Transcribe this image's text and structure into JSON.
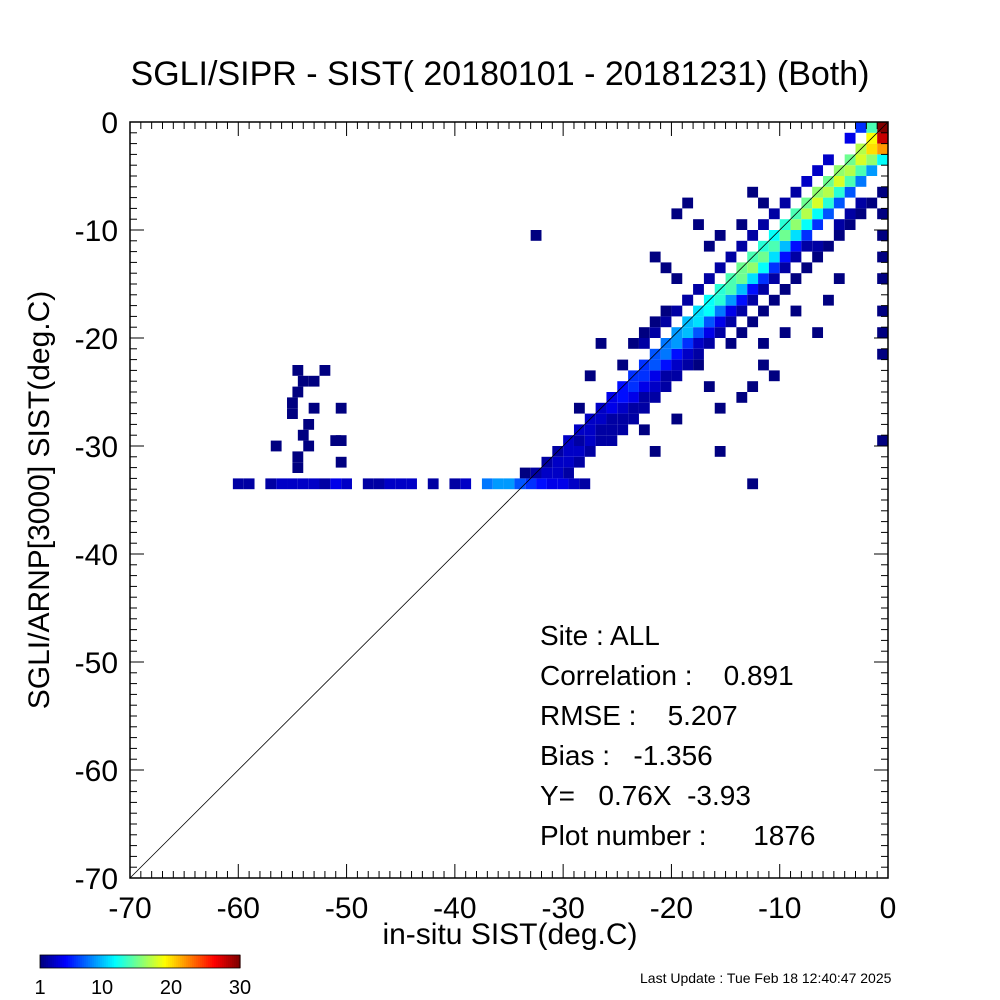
{
  "chart_data": {
    "type": "heatmap",
    "title": "SGLI/SIPR - SIST( 20180101 - 20181231) (Both)",
    "xlabel": "in-situ SIST(deg.C)",
    "ylabel": "SGLI/ARNP[3000]     SIST(deg.C)",
    "xlim": [
      -70,
      0
    ],
    "ylim": [
      -70,
      0
    ],
    "xticks": [
      -70,
      -60,
      -50,
      -40,
      -30,
      -20,
      -10,
      0
    ],
    "yticks": [
      -70,
      -60,
      -50,
      -40,
      -30,
      -20,
      -10,
      0
    ],
    "xtick_labels": [
      "-70",
      "-60",
      "-50",
      "-40",
      "-30",
      "-20",
      "-10",
      "0"
    ],
    "ytick_labels": [
      "-70",
      "-60",
      "-50",
      "-40",
      "-30",
      "-20",
      "-10",
      "0"
    ],
    "one_to_one_line": true,
    "bin_size": 1,
    "colorbar": {
      "min": 1,
      "max": 30,
      "ticks": [
        1,
        10,
        20,
        30
      ],
      "tick_labels": [
        "1",
        "10",
        "20",
        "30"
      ],
      "colormap": "jet"
    },
    "cells": [
      [
        -60,
        -33.5,
        2
      ],
      [
        -59,
        -33.5,
        2
      ],
      [
        -57,
        -33.5,
        2
      ],
      [
        -56,
        -33.5,
        3
      ],
      [
        -55,
        -33.5,
        3
      ],
      [
        -54,
        -33.5,
        3
      ],
      [
        -53,
        -33.5,
        3
      ],
      [
        -52,
        -33.5,
        2
      ],
      [
        -51,
        -33.5,
        4
      ],
      [
        -50,
        -33.5,
        3
      ],
      [
        -48,
        -33.5,
        2
      ],
      [
        -47,
        -33.5,
        2
      ],
      [
        -46,
        -33.5,
        3
      ],
      [
        -45,
        -33.5,
        3
      ],
      [
        -44,
        -33.5,
        3
      ],
      [
        -42,
        -33.5,
        2
      ],
      [
        -40,
        -33.5,
        2
      ],
      [
        -39,
        -33.5,
        3
      ],
      [
        -37,
        -33.5,
        8
      ],
      [
        -36,
        -33.5,
        9
      ],
      [
        -35,
        -33.5,
        9
      ],
      [
        -34,
        -33.5,
        7
      ],
      [
        -33,
        -33.5,
        6
      ],
      [
        -32,
        -33.5,
        5
      ],
      [
        -31,
        -33.5,
        4
      ],
      [
        -30,
        -33.5,
        4
      ],
      [
        -29,
        -33.5,
        3
      ],
      [
        -28,
        -33.5,
        2
      ],
      [
        -54.5,
        -23,
        1
      ],
      [
        -54,
        -24,
        1
      ],
      [
        -54.5,
        -25,
        1
      ],
      [
        -55,
        -26,
        1
      ],
      [
        -55,
        -27,
        1
      ],
      [
        -56.5,
        -30,
        1
      ],
      [
        -54.5,
        -31,
        1
      ],
      [
        -54.5,
        -32,
        1
      ],
      [
        -53.5,
        -30,
        1
      ],
      [
        -54,
        -29,
        1
      ],
      [
        -53.5,
        -28,
        1
      ],
      [
        -53,
        -24,
        1
      ],
      [
        -52,
        -23,
        1
      ],
      [
        -53,
        -26.5,
        1
      ],
      [
        -50.5,
        -26.5,
        1
      ],
      [
        -50.5,
        -29.5,
        1
      ],
      [
        -51,
        -29.5,
        1
      ],
      [
        -50.5,
        -31.5,
        1
      ],
      [
        -33.5,
        -32.5,
        1
      ],
      [
        -32.5,
        -32.5,
        2
      ],
      [
        -31.5,
        -32.5,
        3
      ],
      [
        -30.5,
        -32.5,
        3
      ],
      [
        -29.5,
        -32.5,
        2
      ],
      [
        -31.5,
        -31.5,
        2
      ],
      [
        -30.5,
        -31.5,
        3
      ],
      [
        -29.5,
        -31.5,
        3
      ],
      [
        -28.5,
        -31.5,
        2
      ],
      [
        -30.5,
        -30.5,
        2
      ],
      [
        -29.5,
        -30.5,
        3
      ],
      [
        -28.5,
        -30.5,
        3
      ],
      [
        -27.5,
        -30.5,
        2
      ],
      [
        -29.5,
        -29.5,
        3
      ],
      [
        -28.5,
        -29.5,
        2
      ],
      [
        -27.5,
        -29.5,
        3
      ],
      [
        -26.5,
        -29.5,
        2
      ],
      [
        -28.5,
        -28.5,
        3
      ],
      [
        -27.5,
        -28.5,
        3
      ],
      [
        -26.5,
        -28.5,
        2
      ],
      [
        -25.5,
        -28.5,
        2
      ],
      [
        -27.5,
        -27.5,
        3
      ],
      [
        -26.5,
        -27.5,
        3
      ],
      [
        -25.5,
        -27.5,
        2
      ],
      [
        -24.5,
        -27.5,
        2
      ],
      [
        -26.5,
        -26.5,
        3
      ],
      [
        -25.5,
        -26.5,
        4
      ],
      [
        -24.5,
        -26.5,
        3
      ],
      [
        -23.5,
        -26.5,
        2
      ],
      [
        -25.5,
        -25.5,
        4
      ],
      [
        -24.5,
        -25.5,
        5
      ],
      [
        -23.5,
        -25.5,
        4
      ],
      [
        -22.5,
        -25.5,
        2
      ],
      [
        -24.5,
        -24.5,
        5
      ],
      [
        -23.5,
        -24.5,
        6
      ],
      [
        -22.5,
        -24.5,
        4
      ],
      [
        -21.5,
        -24.5,
        3
      ],
      [
        -23.5,
        -23.5,
        6
      ],
      [
        -22.5,
        -23.5,
        6
      ],
      [
        -21.5,
        -23.5,
        4
      ],
      [
        -20.5,
        -23.5,
        2
      ],
      [
        -22.5,
        -22.5,
        6
      ],
      [
        -21.5,
        -22.5,
        7
      ],
      [
        -20.5,
        -22.5,
        5
      ],
      [
        -19.5,
        -22.5,
        3
      ],
      [
        -21.5,
        -21.5,
        7
      ],
      [
        -20.5,
        -21.5,
        8
      ],
      [
        -19.5,
        -21.5,
        5
      ],
      [
        -18.5,
        -21.5,
        3
      ],
      [
        -20.5,
        -20.5,
        8
      ],
      [
        -19.5,
        -20.5,
        9
      ],
      [
        -18.5,
        -20.5,
        6
      ],
      [
        -17.5,
        -20.5,
        3
      ],
      [
        -19.5,
        -19.5,
        9
      ],
      [
        -18.5,
        -19.5,
        10
      ],
      [
        -17.5,
        -19.5,
        7
      ],
      [
        -16.5,
        -19.5,
        4
      ],
      [
        -18.5,
        -18.5,
        10
      ],
      [
        -17.5,
        -18.5,
        11
      ],
      [
        -16.5,
        -18.5,
        7
      ],
      [
        -15.5,
        -18.5,
        4
      ],
      [
        -17.5,
        -17.5,
        11
      ],
      [
        -16.5,
        -17.5,
        12
      ],
      [
        -15.5,
        -17.5,
        8
      ],
      [
        -14.5,
        -17.5,
        4
      ],
      [
        -16.5,
        -16.5,
        12
      ],
      [
        -15.5,
        -16.5,
        13
      ],
      [
        -14.5,
        -16.5,
        9
      ],
      [
        -13.5,
        -16.5,
        5
      ],
      [
        -15.5,
        -15.5,
        13
      ],
      [
        -14.5,
        -15.5,
        14
      ],
      [
        -13.5,
        -15.5,
        10
      ],
      [
        -12.5,
        -15.5,
        5
      ],
      [
        -14.5,
        -14.5,
        14
      ],
      [
        -13.5,
        -14.5,
        15
      ],
      [
        -12.5,
        -14.5,
        11
      ],
      [
        -11.5,
        -14.5,
        6
      ],
      [
        -13.5,
        -13.5,
        15
      ],
      [
        -12.5,
        -13.5,
        16
      ],
      [
        -11.5,
        -13.5,
        12
      ],
      [
        -10.5,
        -13.5,
        6
      ],
      [
        -12.5,
        -12.5,
        14
      ],
      [
        -11.5,
        -12.5,
        15
      ],
      [
        -10.5,
        -12.5,
        11
      ],
      [
        -9.5,
        -12.5,
        5
      ],
      [
        -11.5,
        -11.5,
        13
      ],
      [
        -10.5,
        -11.5,
        14
      ],
      [
        -9.5,
        -11.5,
        10
      ],
      [
        -8.5,
        -11.5,
        5
      ],
      [
        -10.5,
        -10.5,
        12
      ],
      [
        -9.5,
        -10.5,
        15
      ],
      [
        -8.5,
        -10.5,
        11
      ],
      [
        -7.5,
        -10.5,
        6
      ],
      [
        -9.5,
        -9.5,
        13
      ],
      [
        -8.5,
        -9.5,
        16
      ],
      [
        -7.5,
        -9.5,
        12
      ],
      [
        -6.5,
        -9.5,
        6
      ],
      [
        -8.5,
        -8.5,
        14
      ],
      [
        -7.5,
        -8.5,
        17
      ],
      [
        -6.5,
        -8.5,
        12
      ],
      [
        -5.5,
        -8.5,
        7
      ],
      [
        -7.5,
        -7.5,
        15
      ],
      [
        -6.5,
        -7.5,
        18
      ],
      [
        -5.5,
        -7.5,
        13
      ],
      [
        -4.5,
        -7.5,
        7
      ],
      [
        -6.5,
        -6.5,
        16
      ],
      [
        -5.5,
        -6.5,
        17
      ],
      [
        -4.5,
        -6.5,
        13
      ],
      [
        -3.5,
        -6.5,
        7
      ],
      [
        -5.5,
        -5.5,
        15
      ],
      [
        -4.5,
        -5.5,
        18
      ],
      [
        -3.5,
        -5.5,
        14
      ],
      [
        -2.5,
        -5.5,
        8
      ],
      [
        -4.5,
        -4.5,
        16
      ],
      [
        -3.5,
        -4.5,
        17
      ],
      [
        -2.5,
        -4.5,
        14
      ],
      [
        -1.5,
        -4.5,
        9
      ],
      [
        -3.5,
        -3.5,
        15
      ],
      [
        -2.5,
        -3.5,
        18
      ],
      [
        -1.5,
        -3.5,
        16
      ],
      [
        -0.5,
        -3.5,
        12
      ],
      [
        -2.5,
        -2.5,
        17
      ],
      [
        -1.5,
        -2.5,
        20
      ],
      [
        -0.5,
        -2.5,
        22
      ],
      [
        -1.5,
        -1.5,
        19
      ],
      [
        -0.5,
        -1.5,
        28
      ],
      [
        -0.5,
        -0.5,
        30
      ],
      [
        -1.5,
        -0.5,
        14
      ],
      [
        -32.5,
        -10.5,
        1
      ],
      [
        -19.5,
        -8.5,
        1
      ],
      [
        -18.5,
        -7.5,
        1
      ],
      [
        -17.5,
        -9.5,
        1
      ],
      [
        -21.5,
        -12.5,
        1
      ],
      [
        -20.5,
        -13.5,
        1
      ],
      [
        -19.5,
        -14.5,
        1
      ],
      [
        -18.5,
        -16.5,
        1
      ],
      [
        -16.5,
        -11.5,
        1
      ],
      [
        -15.5,
        -10.5,
        1
      ],
      [
        -13.5,
        -9.5,
        1
      ],
      [
        -12.5,
        -6.5,
        1
      ],
      [
        -11.5,
        -7.5,
        1
      ],
      [
        -22.5,
        -19.5,
        1
      ],
      [
        -21.5,
        -18.5,
        1
      ],
      [
        -20.5,
        -17.5,
        1
      ],
      [
        -23.5,
        -20.5,
        1
      ],
      [
        -17.5,
        -22.5,
        1
      ],
      [
        -16.5,
        -24.5,
        1
      ],
      [
        -15.5,
        -26.5,
        1
      ],
      [
        -13.5,
        -25.5,
        1
      ],
      [
        -12.5,
        -24.5,
        1
      ],
      [
        -11.5,
        -22.5,
        1
      ],
      [
        -14.5,
        -20.5,
        1
      ],
      [
        -13.5,
        -19.5,
        1
      ],
      [
        -12.5,
        -18.5,
        1
      ],
      [
        -11.5,
        -17.5,
        1
      ],
      [
        -10.5,
        -16.5,
        1
      ],
      [
        -9.5,
        -15.5,
        1
      ],
      [
        -8.5,
        -14.5,
        1
      ],
      [
        -7.5,
        -13.5,
        1
      ],
      [
        -6.5,
        -12.5,
        1
      ],
      [
        -5.5,
        -11.5,
        1
      ],
      [
        -4.5,
        -10.5,
        1
      ],
      [
        -3.5,
        -9.5,
        1
      ],
      [
        -2.5,
        -8.5,
        1
      ],
      [
        -1.5,
        -7.5,
        1
      ],
      [
        -0.5,
        -6.5,
        1
      ],
      [
        -0.5,
        -8.5,
        1
      ],
      [
        -0.5,
        -10.5,
        1
      ],
      [
        -0.5,
        -12.5,
        1
      ],
      [
        -0.5,
        -14.5,
        1
      ],
      [
        -0.5,
        -17.5,
        1
      ],
      [
        -0.5,
        -19.5,
        1
      ],
      [
        -0.5,
        -21.5,
        1
      ],
      [
        -0.5,
        -29.5,
        1
      ],
      [
        -4.5,
        -14.5,
        1
      ],
      [
        -5.5,
        -16.5,
        1
      ],
      [
        -6.5,
        -19.5,
        1
      ],
      [
        -8.5,
        -17.5,
        1
      ],
      [
        -9.5,
        -19.5,
        1
      ],
      [
        -11.5,
        -20.5,
        1
      ],
      [
        -10.5,
        -23.5,
        1
      ],
      [
        -12.5,
        -33.5,
        1
      ],
      [
        -15.5,
        -30.5,
        1
      ],
      [
        -19.5,
        -27.5,
        1
      ],
      [
        -21.5,
        -30.5,
        1
      ],
      [
        -22.5,
        -28.5,
        1
      ],
      [
        -24.5,
        -22.5,
        1
      ],
      [
        -26.5,
        -20.5,
        1
      ],
      [
        -27.5,
        -23.5,
        1
      ],
      [
        -28.5,
        -26.5,
        1
      ],
      [
        -4.5,
        -9.5,
        2
      ],
      [
        -3.5,
        -8.5,
        2
      ],
      [
        -2.5,
        -7.5,
        2
      ],
      [
        -7.5,
        -11.5,
        2
      ],
      [
        -6.5,
        -11.5,
        2
      ],
      [
        -9.5,
        -13.5,
        2
      ],
      [
        -8.5,
        -12.5,
        2
      ],
      [
        -11.5,
        -15.5,
        2
      ],
      [
        -10.5,
        -14.5,
        2
      ],
      [
        -13.5,
        -17.5,
        2
      ],
      [
        -12.5,
        -16.5,
        2
      ],
      [
        -15.5,
        -19.5,
        2
      ],
      [
        -14.5,
        -18.5,
        2
      ],
      [
        -17.5,
        -21.5,
        2
      ],
      [
        -16.5,
        -20.5,
        2
      ],
      [
        -19.5,
        -23.5,
        2
      ],
      [
        -18.5,
        -22.5,
        2
      ],
      [
        -21.5,
        -25.5,
        2
      ],
      [
        -20.5,
        -24.5,
        2
      ],
      [
        -23.5,
        -27.5,
        2
      ],
      [
        -22.5,
        -26.5,
        2
      ],
      [
        -25.5,
        -29.5,
        2
      ],
      [
        -24.5,
        -28.5,
        2
      ],
      [
        -8.5,
        -6.5,
        2
      ],
      [
        -9.5,
        -7.5,
        2
      ],
      [
        -10.5,
        -8.5,
        2
      ],
      [
        -11.5,
        -9.5,
        2
      ],
      [
        -12.5,
        -10.5,
        2
      ],
      [
        -13.5,
        -11.5,
        2
      ],
      [
        -14.5,
        -12.5,
        2
      ],
      [
        -15.5,
        -13.5,
        2
      ],
      [
        -16.5,
        -14.5,
        2
      ],
      [
        -17.5,
        -15.5,
        2
      ],
      [
        -18.5,
        -16.5,
        2
      ],
      [
        -19.5,
        -17.5,
        2
      ],
      [
        -20.5,
        -18.5,
        2
      ],
      [
        -21.5,
        -19.5,
        2
      ],
      [
        -22.5,
        -20.5,
        2
      ],
      [
        -5.5,
        -3.5,
        3
      ],
      [
        -6.5,
        -4.5,
        3
      ],
      [
        -7.5,
        -5.5,
        3
      ],
      [
        -3.5,
        -1.5,
        4
      ],
      [
        -2.5,
        -0.5,
        6
      ]
    ]
  },
  "stats": {
    "site": "Site : ALL",
    "correlation": "Correlation :    0.891",
    "rmse": "RMSE :    5.207",
    "bias": "Bias :   -1.356",
    "regression": "Y=   0.76X  -3.93",
    "plot_number": "Plot number :      1876"
  },
  "last_update": "Last Update : Tue Feb 18 12:40:47 2025"
}
